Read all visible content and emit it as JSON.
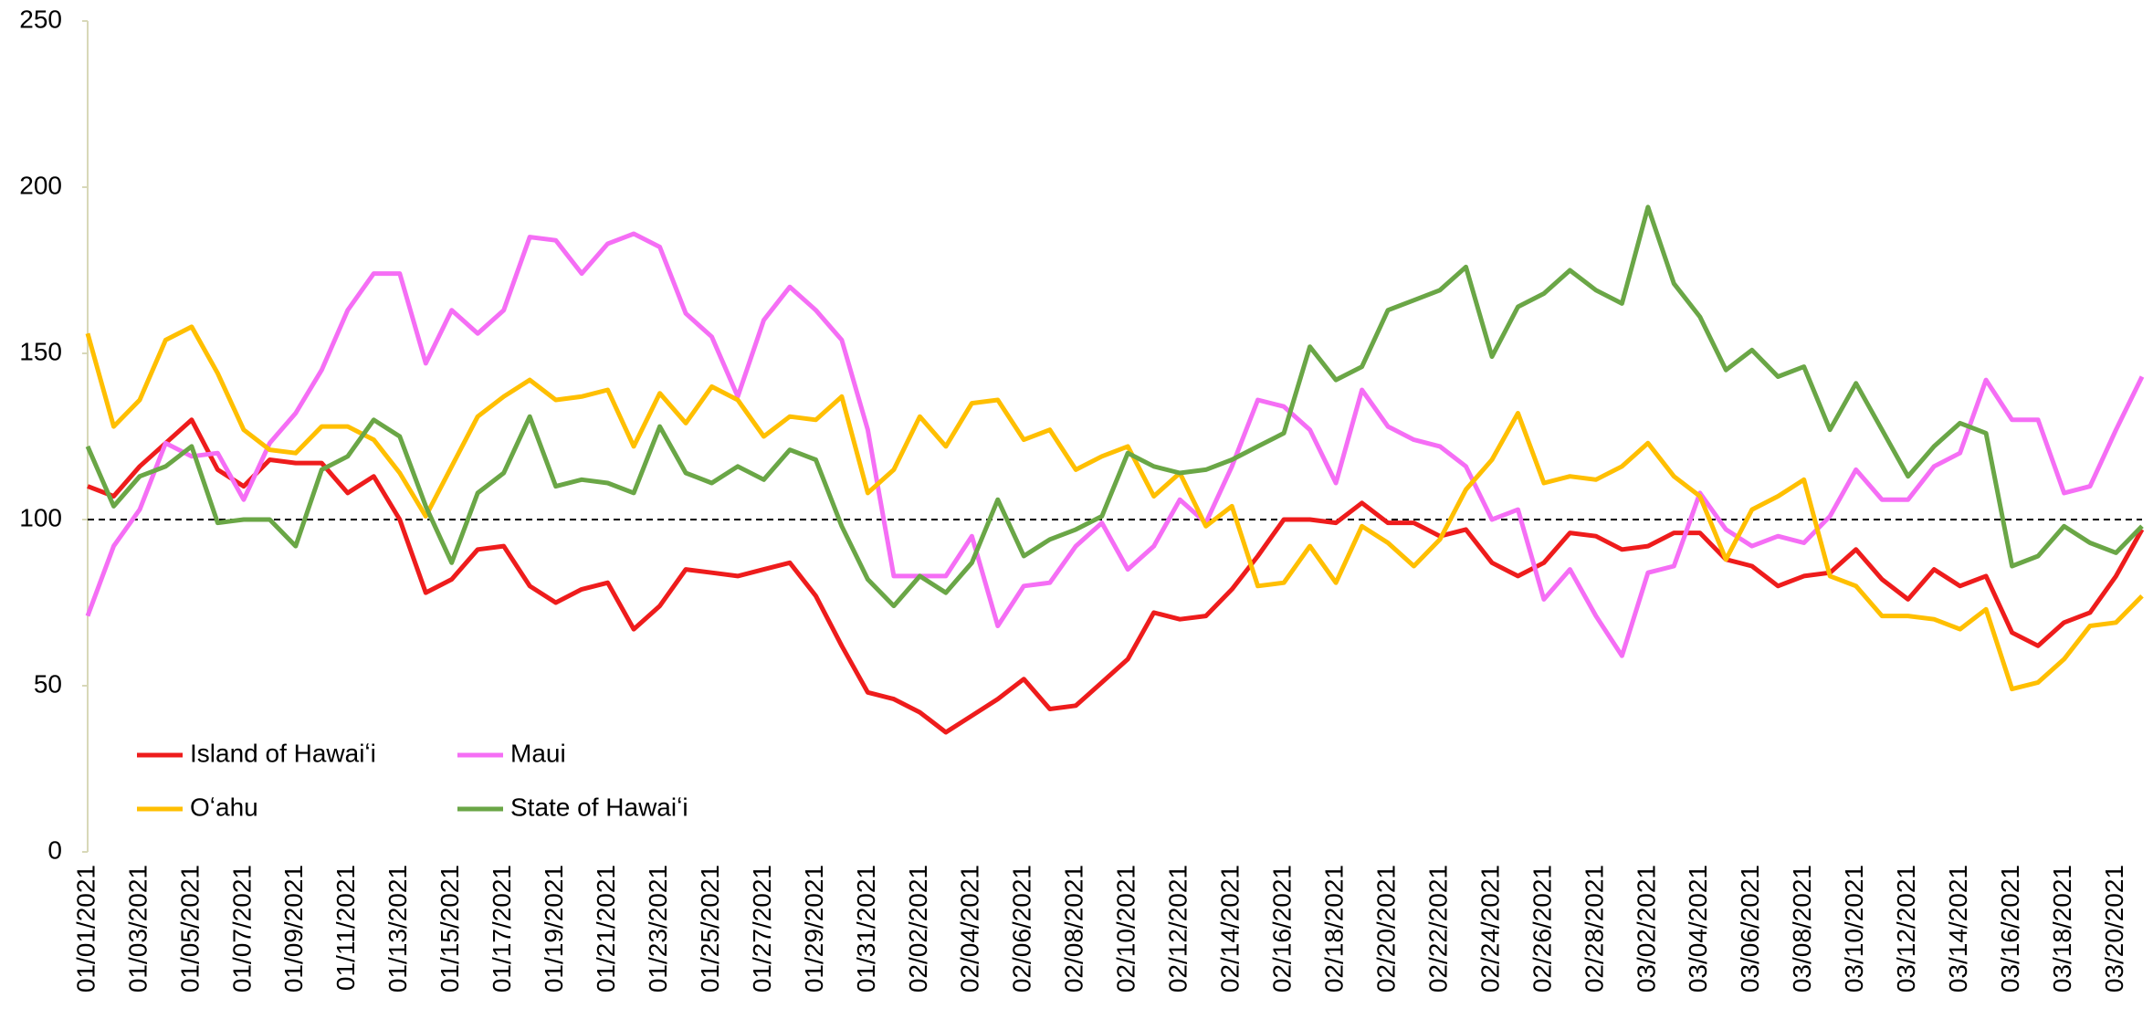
{
  "chart_data": {
    "type": "line",
    "categories": [
      "01/01/2021",
      null,
      "01/03/2021",
      null,
      "01/05/2021",
      null,
      "01/07/2021",
      null,
      "01/09/2021",
      null,
      "01/11/2021",
      null,
      "01/13/2021",
      null,
      "01/15/2021",
      null,
      "01/17/2021",
      null,
      "01/19/2021",
      null,
      "01/21/2021",
      null,
      "01/23/2021",
      null,
      "01/25/2021",
      null,
      "01/27/2021",
      null,
      "01/29/2021",
      null,
      "01/31/2021",
      null,
      "02/02/2021",
      null,
      "02/04/2021",
      null,
      "02/06/2021",
      null,
      "02/08/2021",
      null,
      "02/10/2021",
      null,
      "02/12/2021",
      null,
      "02/14/2021",
      null,
      "02/16/2021",
      null,
      "02/18/2021",
      null,
      "02/20/2021",
      null,
      "02/22/2021",
      null,
      "02/24/2021",
      null,
      "02/26/2021",
      null,
      "02/28/2021",
      null,
      "03/02/2021",
      null,
      "03/04/2021",
      null,
      "03/06/2021",
      null,
      "03/08/2021",
      null,
      "03/10/2021",
      null,
      "03/12/2021",
      null,
      "03/14/2021",
      null,
      "03/16/2021",
      null,
      "03/18/2021",
      null,
      "03/20/2021",
      null
    ],
    "series": [
      {
        "name": "Island of Hawaiʻi",
        "color": "#ee1c1c",
        "values": [
          110,
          107,
          116,
          123,
          130,
          115,
          110,
          118,
          117,
          117,
          108,
          113,
          100,
          78,
          82,
          91,
          92,
          80,
          75,
          79,
          81,
          67,
          74,
          85,
          84,
          83,
          85,
          87,
          77,
          62,
          48,
          46,
          42,
          36,
          41,
          46,
          52,
          43,
          44,
          51,
          58,
          72,
          70,
          71,
          79,
          89,
          100,
          100,
          99,
          105,
          99,
          99,
          95,
          97,
          87,
          83,
          87,
          96,
          95,
          91,
          92,
          96,
          96,
          88,
          86,
          80,
          83,
          84,
          91,
          82,
          76,
          85,
          80,
          83,
          66,
          62,
          69,
          72,
          83,
          97
        ]
      },
      {
        "name": "Maui",
        "color": "#f56ef5",
        "values": [
          71,
          92,
          103,
          123,
          119,
          120,
          106,
          123,
          132,
          145,
          163,
          174,
          174,
          147,
          163,
          156,
          163,
          185,
          184,
          174,
          183,
          186,
          182,
          162,
          155,
          137,
          160,
          170,
          163,
          154,
          127,
          83,
          83,
          83,
          95,
          68,
          80,
          81,
          92,
          99,
          85,
          92,
          106,
          99,
          116,
          136,
          134,
          127,
          111,
          139,
          128,
          124,
          122,
          116,
          100,
          103,
          76,
          85,
          71,
          59,
          84,
          86,
          108,
          97,
          92,
          95,
          93,
          101,
          115,
          106,
          106,
          116,
          120,
          142,
          130,
          130,
          108,
          110,
          127,
          143
        ]
      },
      {
        "name": "Oʻahu",
        "color": "#ffbf00",
        "values": [
          156,
          128,
          136,
          154,
          158,
          144,
          127,
          121,
          120,
          128,
          128,
          124,
          114,
          101,
          116,
          131,
          137,
          142,
          136,
          137,
          139,
          122,
          138,
          129,
          140,
          136,
          125,
          131,
          130,
          137,
          108,
          115,
          131,
          122,
          135,
          136,
          124,
          127,
          115,
          119,
          122,
          107,
          114,
          98,
          104,
          80,
          81,
          92,
          81,
          98,
          93,
          86,
          94,
          109,
          118,
          132,
          111,
          113,
          112,
          116,
          123,
          113,
          107,
          88,
          103,
          107,
          112,
          83,
          80,
          71,
          71,
          70,
          67,
          73,
          49,
          51,
          58,
          68,
          69,
          77
        ]
      },
      {
        "name": "State of Hawaiʻi",
        "color": "#6aa646",
        "values": [
          122,
          104,
          113,
          116,
          122,
          99,
          100,
          100,
          92,
          115,
          119,
          130,
          125,
          104,
          87,
          108,
          114,
          131,
          110,
          112,
          111,
          108,
          128,
          114,
          111,
          116,
          112,
          121,
          118,
          98,
          82,
          74,
          83,
          78,
          87,
          106,
          89,
          94,
          97,
          101,
          120,
          116,
          114,
          115,
          118,
          122,
          126,
          152,
          142,
          146,
          163,
          166,
          169,
          176,
          149,
          164,
          168,
          175,
          169,
          165,
          194,
          171,
          161,
          145,
          151,
          143,
          146,
          127,
          141,
          127,
          113,
          122,
          129,
          126,
          86,
          89,
          98,
          93,
          90,
          98
        ]
      }
    ],
    "ylim": [
      0,
      250
    ],
    "yticks": [
      0,
      50,
      100,
      150,
      200,
      250
    ],
    "reference_line": 100,
    "grid": false,
    "legend": "lower left"
  }
}
